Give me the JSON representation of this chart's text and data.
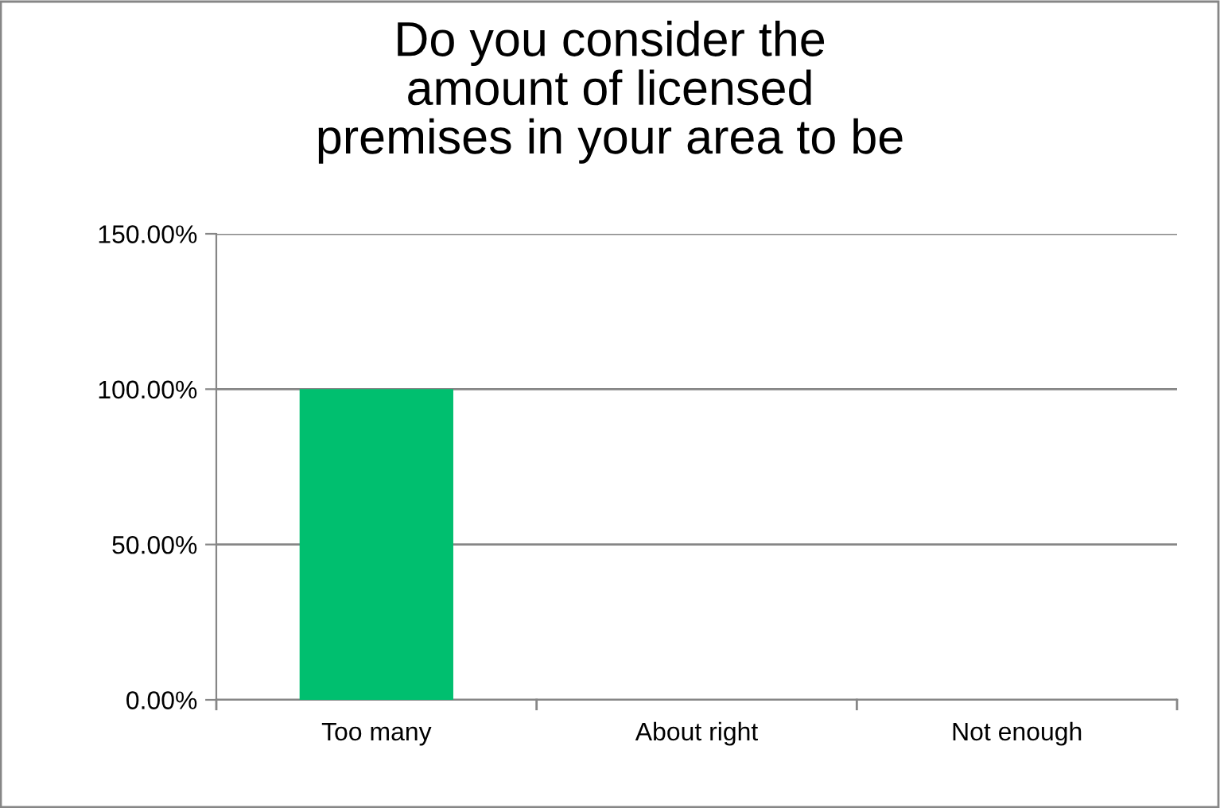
{
  "chart_data": {
    "type": "bar",
    "title": "Do you consider the\namount of licensed\npremises in your area to be",
    "categories": [
      "Too many",
      "About right",
      "Not enough"
    ],
    "values": [
      100,
      0,
      0
    ],
    "color": "#00bf6f",
    "ylim": [
      0,
      150
    ],
    "yticks": [
      {
        "value": 0,
        "label": "0.00%"
      },
      {
        "value": 50,
        "label": "50.00%"
      },
      {
        "value": 100,
        "label": "100.00%"
      },
      {
        "value": 150,
        "label": "150.00%"
      }
    ],
    "grid": "y",
    "legend": false
  }
}
